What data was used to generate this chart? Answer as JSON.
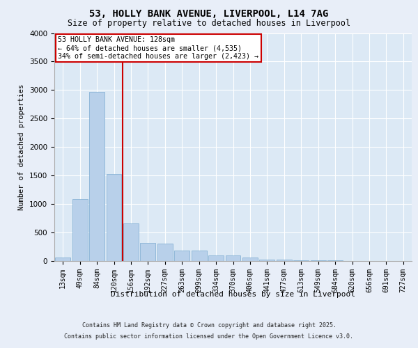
{
  "title": "53, HOLLY BANK AVENUE, LIVERPOOL, L14 7AG",
  "subtitle": "Size of property relative to detached houses in Liverpool",
  "xlabel": "Distribution of detached houses by size in Liverpool",
  "ylabel": "Number of detached properties",
  "categories": [
    "13sqm",
    "49sqm",
    "84sqm",
    "120sqm",
    "156sqm",
    "192sqm",
    "227sqm",
    "263sqm",
    "299sqm",
    "334sqm",
    "370sqm",
    "406sqm",
    "441sqm",
    "477sqm",
    "513sqm",
    "549sqm",
    "584sqm",
    "620sqm",
    "656sqm",
    "691sqm",
    "727sqm"
  ],
  "values": [
    55,
    1090,
    2970,
    1530,
    660,
    315,
    310,
    185,
    185,
    95,
    95,
    60,
    30,
    30,
    10,
    10,
    8,
    0,
    0,
    0,
    0
  ],
  "bar_color": "#b8d0ea",
  "bar_edge_color": "#7aaad0",
  "vline_color": "#cc0000",
  "annotation_text": "53 HOLLY BANK AVENUE: 128sqm\n← 64% of detached houses are smaller (4,535)\n34% of semi-detached houses are larger (2,423) →",
  "annotation_box_edgecolor": "#cc0000",
  "ylim": [
    0,
    4000
  ],
  "yticks": [
    0,
    500,
    1000,
    1500,
    2000,
    2500,
    3000,
    3500,
    4000
  ],
  "fig_bg_color": "#e8eef8",
  "plot_bg_color": "#dce9f5",
  "grid_color": "#ffffff",
  "footer_line1": "Contains HM Land Registry data © Crown copyright and database right 2025.",
  "footer_line2": "Contains public sector information licensed under the Open Government Licence v3.0."
}
